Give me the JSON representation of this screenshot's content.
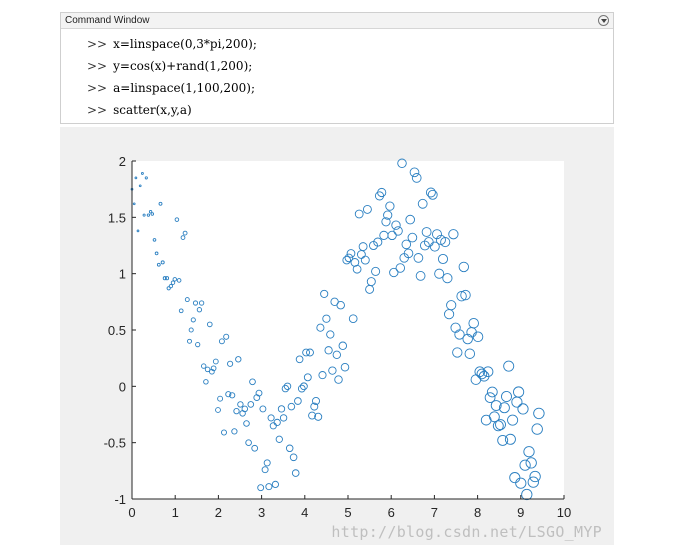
{
  "command_window": {
    "title": "Command Window",
    "prompt": ">>",
    "lines": [
      "x=linspace(0,3*pi,200);",
      "y=cos(x)+rand(1,200);",
      "a=linspace(1,100,200);",
      "scatter(x,y,a)"
    ]
  },
  "colors": {
    "marker": "#2a7fc1",
    "axes_bg": "#ffffff",
    "figure_bg": "#f0f0f0",
    "axis": "#262626"
  },
  "watermark": "http://blog.csdn.net/LSGO_MYP",
  "chart_data": {
    "type": "scatter",
    "title": "",
    "xlabel": "",
    "ylabel": "",
    "xlim": [
      0,
      10
    ],
    "ylim": [
      -1,
      2
    ],
    "xticks": [
      "0",
      "1",
      "2",
      "3",
      "4",
      "5",
      "6",
      "7",
      "8",
      "9",
      "10"
    ],
    "yticks": [
      "-1",
      "-0.5",
      "0",
      "0.5",
      "1",
      "1.5",
      "2"
    ],
    "grid": false,
    "legend": false,
    "size_range": [
      1,
      100
    ],
    "points": [
      [
        0.0,
        1.75
      ],
      [
        0.05,
        1.62
      ],
      [
        0.09,
        1.85
      ],
      [
        0.14,
        1.38
      ],
      [
        0.19,
        1.78
      ],
      [
        0.24,
        1.89
      ],
      [
        0.28,
        1.52
      ],
      [
        0.33,
        1.85
      ],
      [
        0.38,
        1.52
      ],
      [
        0.43,
        1.55
      ],
      [
        0.47,
        1.53
      ],
      [
        0.52,
        1.3
      ],
      [
        0.57,
        1.18
      ],
      [
        0.62,
        1.08
      ],
      [
        0.66,
        1.62
      ],
      [
        0.71,
        1.1
      ],
      [
        0.76,
        0.96
      ],
      [
        0.81,
        0.96
      ],
      [
        0.85,
        0.87
      ],
      [
        0.9,
        0.89
      ],
      [
        0.95,
        0.92
      ],
      [
        0.99,
        0.95
      ],
      [
        1.04,
        1.48
      ],
      [
        1.09,
        0.94
      ],
      [
        1.14,
        0.67
      ],
      [
        1.18,
        1.32
      ],
      [
        1.23,
        1.36
      ],
      [
        1.28,
        0.77
      ],
      [
        1.33,
        0.4
      ],
      [
        1.37,
        0.5
      ],
      [
        1.42,
        0.59
      ],
      [
        1.47,
        0.74
      ],
      [
        1.52,
        0.37
      ],
      [
        1.56,
        0.68
      ],
      [
        1.61,
        0.74
      ],
      [
        1.66,
        0.18
      ],
      [
        1.71,
        0.04
      ],
      [
        1.75,
        0.15
      ],
      [
        1.8,
        0.55
      ],
      [
        1.85,
        0.13
      ],
      [
        1.89,
        0.16
      ],
      [
        1.94,
        0.22
      ],
      [
        1.99,
        -0.21
      ],
      [
        2.04,
        -0.11
      ],
      [
        2.08,
        0.4
      ],
      [
        2.13,
        -0.41
      ],
      [
        2.18,
        0.44
      ],
      [
        2.23,
        -0.07
      ],
      [
        2.27,
        0.2
      ],
      [
        2.32,
        -0.08
      ],
      [
        2.37,
        -0.4
      ],
      [
        2.42,
        -0.22
      ],
      [
        2.46,
        0.24
      ],
      [
        2.51,
        -0.16
      ],
      [
        2.56,
        -0.24
      ],
      [
        2.61,
        -0.2
      ],
      [
        2.65,
        -0.33
      ],
      [
        2.7,
        -0.5
      ],
      [
        2.75,
        -0.16
      ],
      [
        2.79,
        0.04
      ],
      [
        2.84,
        -0.55
      ],
      [
        2.89,
        -0.1
      ],
      [
        2.94,
        -0.06
      ],
      [
        2.98,
        -0.9
      ],
      [
        3.03,
        -0.2
      ],
      [
        3.08,
        -0.74
      ],
      [
        3.13,
        -0.68
      ],
      [
        3.17,
        -0.89
      ],
      [
        3.22,
        -0.28
      ],
      [
        3.27,
        -0.35
      ],
      [
        3.32,
        -0.87
      ],
      [
        3.36,
        -0.32
      ],
      [
        3.41,
        -0.47
      ],
      [
        3.46,
        -0.2
      ],
      [
        3.51,
        -0.28
      ],
      [
        3.55,
        -0.02
      ],
      [
        3.6,
        0.0
      ],
      [
        3.65,
        -0.55
      ],
      [
        3.69,
        -0.18
      ],
      [
        3.74,
        -0.63
      ],
      [
        3.79,
        -0.77
      ],
      [
        3.84,
        -0.13
      ],
      [
        3.88,
        0.24
      ],
      [
        3.93,
        -0.02
      ],
      [
        3.98,
        0.0
      ],
      [
        4.03,
        0.3
      ],
      [
        4.07,
        0.08
      ],
      [
        4.12,
        0.3
      ],
      [
        4.17,
        -0.26
      ],
      [
        4.22,
        -0.18
      ],
      [
        4.26,
        -0.13
      ],
      [
        4.31,
        -0.27
      ],
      [
        4.36,
        0.52
      ],
      [
        4.41,
        0.1
      ],
      [
        4.45,
        0.82
      ],
      [
        4.5,
        0.6
      ],
      [
        4.55,
        0.32
      ],
      [
        4.59,
        0.46
      ],
      [
        4.64,
        0.14
      ],
      [
        4.69,
        0.75
      ],
      [
        4.74,
        0.28
      ],
      [
        4.78,
        0.06
      ],
      [
        4.83,
        0.72
      ],
      [
        4.88,
        0.36
      ],
      [
        4.93,
        0.17
      ],
      [
        4.97,
        1.12
      ],
      [
        5.02,
        1.14
      ],
      [
        5.07,
        1.18
      ],
      [
        5.12,
        0.6
      ],
      [
        5.16,
        1.1
      ],
      [
        5.21,
        1.04
      ],
      [
        5.26,
        1.53
      ],
      [
        5.31,
        1.17
      ],
      [
        5.35,
        1.24
      ],
      [
        5.4,
        1.12
      ],
      [
        5.45,
        1.57
      ],
      [
        5.5,
        0.86
      ],
      [
        5.54,
        0.93
      ],
      [
        5.59,
        1.25
      ],
      [
        5.64,
        1.02
      ],
      [
        5.69,
        1.28
      ],
      [
        5.73,
        1.69
      ],
      [
        5.78,
        1.72
      ],
      [
        5.83,
        1.34
      ],
      [
        5.88,
        1.46
      ],
      [
        5.92,
        1.52
      ],
      [
        5.97,
        1.6
      ],
      [
        6.02,
        1.34
      ],
      [
        6.06,
        1.01
      ],
      [
        6.11,
        1.43
      ],
      [
        6.16,
        1.38
      ],
      [
        6.21,
        1.05
      ],
      [
        6.25,
        1.98
      ],
      [
        6.3,
        1.14
      ],
      [
        6.35,
        1.26
      ],
      [
        6.4,
        1.18
      ],
      [
        6.44,
        1.48
      ],
      [
        6.49,
        1.32
      ],
      [
        6.54,
        1.9
      ],
      [
        6.59,
        1.85
      ],
      [
        6.63,
        1.14
      ],
      [
        6.68,
        0.98
      ],
      [
        6.73,
        1.62
      ],
      [
        6.78,
        1.25
      ],
      [
        6.82,
        1.37
      ],
      [
        6.87,
        1.28
      ],
      [
        6.92,
        1.72
      ],
      [
        6.96,
        1.7
      ],
      [
        7.01,
        1.24
      ],
      [
        7.06,
        1.35
      ],
      [
        7.11,
        1.0
      ],
      [
        7.15,
        1.3
      ],
      [
        7.2,
        1.13
      ],
      [
        7.25,
        1.28
      ],
      [
        7.3,
        0.96
      ],
      [
        7.34,
        0.64
      ],
      [
        7.39,
        0.72
      ],
      [
        7.44,
        1.35
      ],
      [
        7.49,
        0.52
      ],
      [
        7.53,
        0.3
      ],
      [
        7.58,
        0.46
      ],
      [
        7.63,
        0.8
      ],
      [
        7.68,
        1.06
      ],
      [
        7.72,
        0.81
      ],
      [
        7.77,
        0.42
      ],
      [
        7.82,
        0.29
      ],
      [
        7.86,
        0.48
      ],
      [
        7.91,
        0.56
      ],
      [
        7.96,
        0.06
      ],
      [
        8.01,
        0.44
      ],
      [
        8.05,
        0.13
      ],
      [
        8.1,
        0.11
      ],
      [
        8.15,
        0.09
      ],
      [
        8.2,
        -0.3
      ],
      [
        8.24,
        0.13
      ],
      [
        8.29,
        -0.1
      ],
      [
        8.34,
        -0.05
      ],
      [
        8.39,
        -0.27
      ],
      [
        8.43,
        -0.17
      ],
      [
        8.48,
        -0.35
      ],
      [
        8.53,
        -0.34
      ],
      [
        8.58,
        -0.48
      ],
      [
        8.62,
        -0.19
      ],
      [
        8.67,
        -0.09
      ],
      [
        8.72,
        0.18
      ],
      [
        8.76,
        -0.47
      ],
      [
        8.81,
        -0.3
      ],
      [
        8.86,
        -0.81
      ],
      [
        8.91,
        -0.14
      ],
      [
        8.95,
        -0.05
      ],
      [
        9.0,
        -0.86
      ],
      [
        9.05,
        -0.2
      ],
      [
        9.1,
        -0.7
      ],
      [
        9.14,
        -0.96
      ],
      [
        9.19,
        -0.58
      ],
      [
        9.24,
        -0.68
      ],
      [
        9.29,
        -0.85
      ],
      [
        9.33,
        -0.8
      ],
      [
        9.38,
        -0.38
      ],
      [
        9.42,
        -0.24
      ]
    ]
  }
}
